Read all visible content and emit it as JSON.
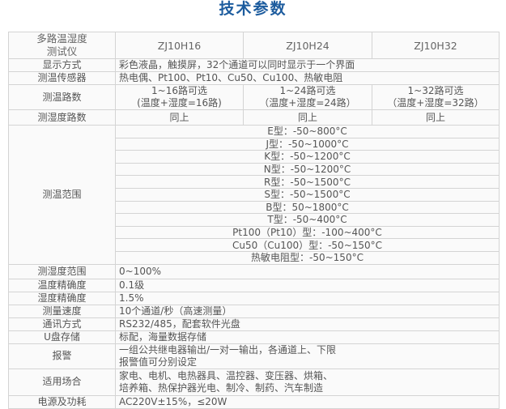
{
  "title": "技术参数",
  "header": {
    "product": [
      "多路温湿度",
      "测试仪"
    ],
    "models": [
      "ZJ10H16",
      "ZJ10H24",
      "ZJ10H32"
    ]
  },
  "display": {
    "label": "显示方式",
    "value": "彩色液晶，触摸屏，32个通道可以同时显示于一个界面"
  },
  "sensor": {
    "label": "测温传感器",
    "value": "热电偶、Pt100、Pt10、Cu50、Cu100、热敏电阻"
  },
  "temp_channels": {
    "label": "测温路数",
    "values": [
      [
        "1~16路可选",
        "(温度+湿度=16路)"
      ],
      [
        "1~24路可选",
        "（温度+湿度=24路）"
      ],
      [
        "1~32路可选",
        "（温度+湿度=32路）"
      ]
    ]
  },
  "hum_channels": {
    "label": "测湿度路数",
    "values": [
      "同上",
      "同上",
      "同上"
    ]
  },
  "temp_range": {
    "label": "测温范围",
    "values": [
      "E型：-50~800°C",
      "J型：-50~1000°C",
      "K型：-50~1200°C",
      "N型：-50~1200°C",
      "R型：-50~1500°C",
      "S型：-50~1500°C",
      "B型：50~1800°C",
      "T型：-50~400°C",
      "Pt100（Pt10）型：-100~400°C",
      "Cu50（Cu100）型：-50~150°C",
      "热敏电阻型：-50~150°C"
    ]
  },
  "rows": [
    {
      "label": "测湿度范围",
      "lines": [
        "0~100%"
      ]
    },
    {
      "label": "温度精确度",
      "lines": [
        "0.1级"
      ]
    },
    {
      "label": "湿度精确度",
      "lines": [
        "1.5%"
      ]
    },
    {
      "label": "测量速度",
      "lines": [
        "10个通道/秒（高速测量）"
      ]
    },
    {
      "label": "通讯方式",
      "lines": [
        "RS232/485，配套软件光盘"
      ]
    },
    {
      "label": "U盘存储",
      "lines": [
        "标配，海量数据存储"
      ]
    },
    {
      "label": "报警",
      "lines": [
        "一组公共继电器输出/一对一输出，各通道上、下限",
        "报警值可分别设定"
      ]
    },
    {
      "label": "适用场合",
      "lines": [
        "家电、电机、电热器具、温控器、变压器、烘箱、",
        "培养箱、热保护器光电、制冷、制药、汽车制造"
      ]
    },
    {
      "label": "电源及功耗",
      "lines": [
        "AC220V±15%，≤20W"
      ]
    }
  ]
}
